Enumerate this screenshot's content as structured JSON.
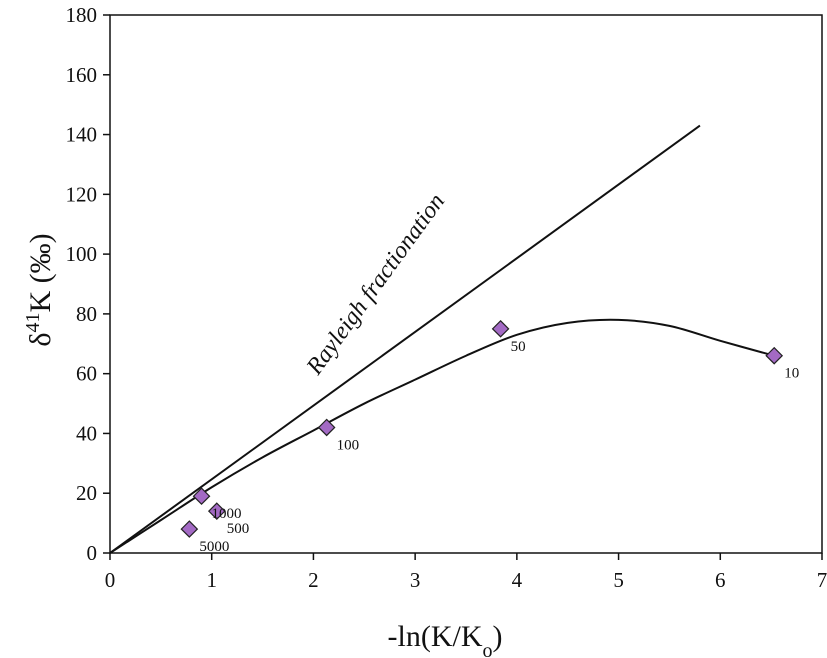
{
  "chart_data": {
    "type": "scatter",
    "title": "",
    "xlabel_main": "-ln(K/K",
    "xlabel_sub": "o",
    "xlabel_close": ")",
    "ylabel_delta": "δ",
    "ylabel_sup": "41",
    "ylabel_rest": "K (‰)",
    "xlim": [
      0,
      7
    ],
    "ylim": [
      0,
      180
    ],
    "x_ticks": [
      0,
      1,
      2,
      3,
      4,
      5,
      6,
      7
    ],
    "y_ticks": [
      0,
      20,
      40,
      60,
      80,
      100,
      120,
      140,
      160,
      180
    ],
    "grid": false,
    "marker_color": "#a36ac4",
    "points": [
      {
        "x": 0.78,
        "y": 8,
        "label": "5000"
      },
      {
        "x": 1.05,
        "y": 14,
        "label": "500"
      },
      {
        "x": 0.9,
        "y": 19,
        "label": "1000"
      },
      {
        "x": 2.13,
        "y": 42,
        "label": "100"
      },
      {
        "x": 3.84,
        "y": 75,
        "label": "50"
      },
      {
        "x": 6.53,
        "y": 66,
        "label": "10"
      }
    ],
    "rayleigh_line": {
      "label": "Rayleigh fractionation",
      "x": [
        0,
        5.8
      ],
      "y": [
        0,
        143
      ]
    },
    "fit_curve": {
      "x": [
        0,
        0.5,
        1,
        1.5,
        2,
        2.5,
        3,
        3.5,
        4,
        4.5,
        5,
        5.5,
        6,
        6.53
      ],
      "y": [
        0,
        11,
        22,
        32,
        41,
        50,
        58,
        66,
        73,
        77,
        78,
        76,
        71,
        66
      ]
    }
  }
}
